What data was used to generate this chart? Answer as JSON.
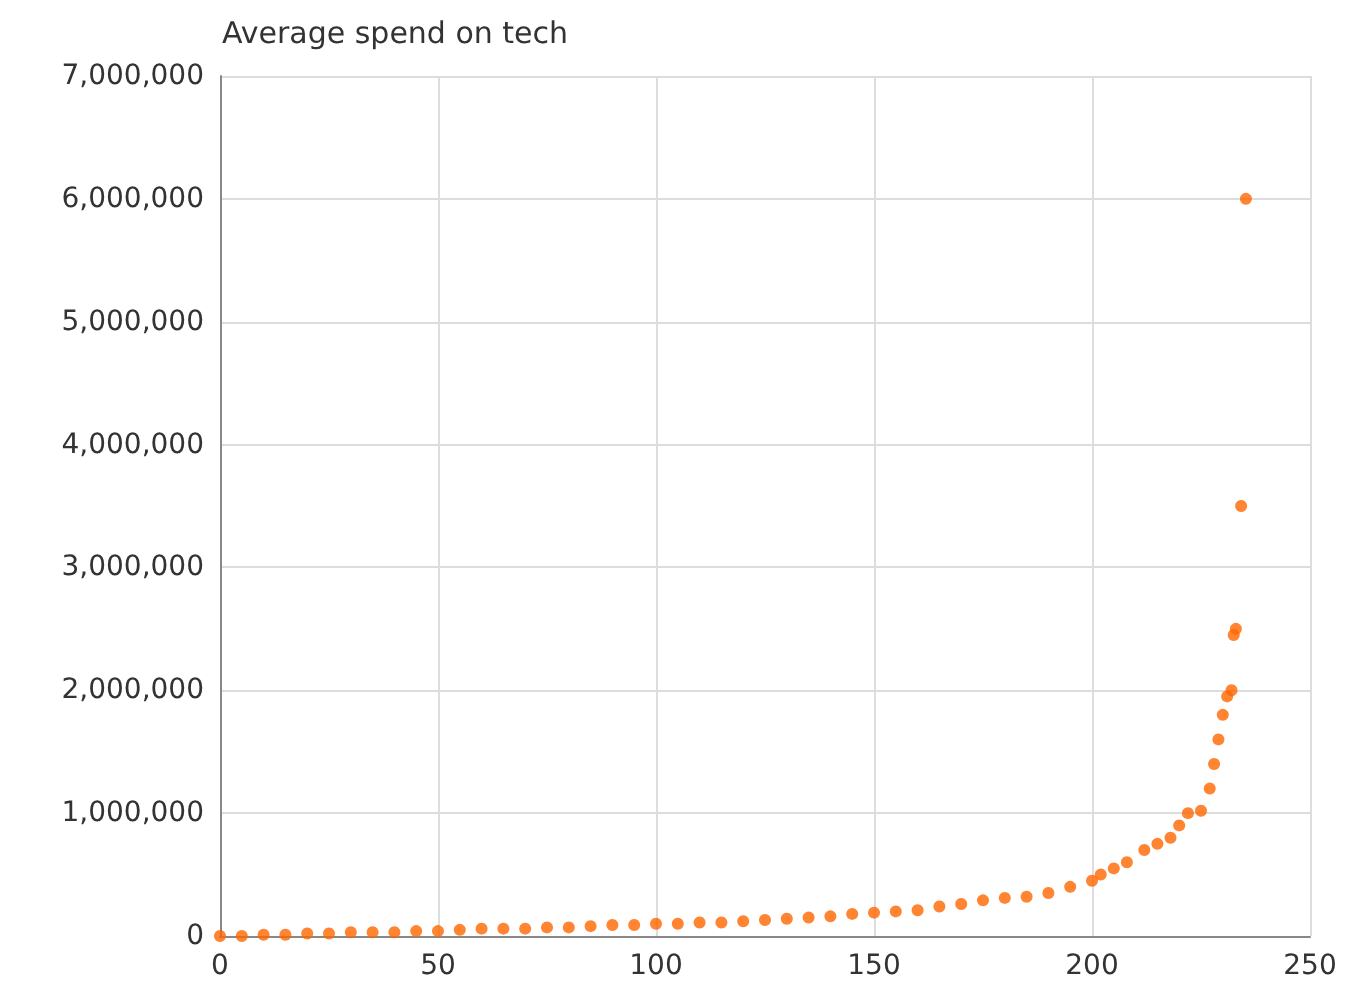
{
  "chart_data": {
    "type": "scatter",
    "title": "Average spend on tech",
    "x": [
      0,
      5,
      10,
      15,
      20,
      25,
      30,
      35,
      40,
      45,
      50,
      55,
      60,
      65,
      70,
      75,
      80,
      85,
      90,
      95,
      100,
      105,
      110,
      115,
      120,
      125,
      130,
      135,
      140,
      145,
      150,
      155,
      160,
      165,
      170,
      175,
      180,
      185,
      190,
      195,
      200,
      202,
      205,
      208,
      212,
      215,
      218,
      220,
      222,
      225,
      227,
      228,
      229,
      230,
      231,
      232,
      232.5,
      233,
      234.2,
      235.3
    ],
    "series": [
      {
        "color": "#ff6600",
        "values": [
          0,
          0,
          10000,
          10000,
          20000,
          20000,
          30000,
          30000,
          30000,
          40000,
          40000,
          50000,
          60000,
          60000,
          60000,
          70000,
          70000,
          80000,
          90000,
          90000,
          100000,
          100000,
          110000,
          110000,
          120000,
          130000,
          140000,
          150000,
          160000,
          180000,
          190000,
          200000,
          210000,
          240000,
          260000,
          290000,
          310000,
          320000,
          350000,
          400000,
          450000,
          500000,
          550000,
          600000,
          700000,
          750000,
          800000,
          900000,
          1000000,
          1020000,
          1200000,
          1400000,
          1600000,
          1800000,
          1950000,
          2000000,
          2450000,
          2500000,
          3500000,
          6000000
        ]
      }
    ],
    "xlim": [
      0,
      250
    ],
    "xticks": [
      0,
      50,
      100,
      150,
      200,
      250
    ],
    "ylim": [
      0,
      7000000
    ],
    "yticks": [
      0,
      {
        "value": 1000000,
        "label": "1,000,000"
      },
      {
        "value": 2000000,
        "label": "2,000,000"
      },
      {
        "value": 3000000,
        "label": "3,000,000"
      },
      {
        "value": 4000000,
        "label": "4,000,000"
      },
      {
        "value": 5000000,
        "label": "5,000,000"
      },
      {
        "value": 6000000,
        "label": "6,000,000"
      },
      {
        "value": 7000000,
        "label": "7,000,000"
      }
    ],
    "grid": true,
    "marker": "circle"
  }
}
